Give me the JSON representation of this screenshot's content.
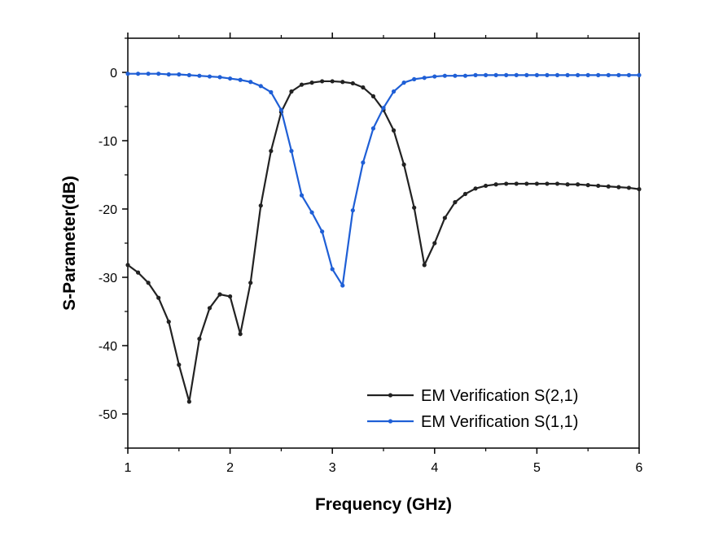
{
  "chart_data": {
    "type": "line",
    "title": "",
    "xlabel": "Frequency (GHz)",
    "ylabel": "S-Parameter(dB)",
    "xlim": [
      1,
      6
    ],
    "ylim": [
      -55,
      5
    ],
    "xticks": [
      1,
      2,
      3,
      4,
      5,
      6
    ],
    "yticks": [
      0,
      -10,
      -20,
      -30,
      -40,
      -50
    ],
    "x_tick_labels": [
      "1",
      "2",
      "3",
      "4",
      "5",
      "6"
    ],
    "y_tick_labels": [
      "0",
      "-10",
      "-20",
      "-30",
      "-40",
      "-50"
    ],
    "grid": false,
    "legend_position": "bottom-right",
    "x": [
      1.0,
      1.1,
      1.2,
      1.3,
      1.4,
      1.5,
      1.6,
      1.7,
      1.8,
      1.9,
      2.0,
      2.1,
      2.2,
      2.3,
      2.4,
      2.5,
      2.6,
      2.7,
      2.8,
      2.9,
      3.0,
      3.1,
      3.2,
      3.3,
      3.4,
      3.5,
      3.6,
      3.7,
      3.8,
      3.9,
      4.0,
      4.1,
      4.2,
      4.3,
      4.4,
      4.5,
      4.6,
      4.7,
      4.8,
      4.9,
      5.0,
      5.1,
      5.2,
      5.3,
      5.4,
      5.5,
      5.6,
      5.7,
      5.8,
      5.9,
      6.0
    ],
    "series": [
      {
        "name": "EM Verification S(2,1)",
        "color": "#222222",
        "values": [
          -28.2,
          -29.3,
          -30.8,
          -33.0,
          -36.5,
          -42.8,
          -48.2,
          -39.0,
          -34.5,
          -32.5,
          -32.8,
          -38.3,
          -30.8,
          -19.5,
          -11.5,
          -5.8,
          -2.8,
          -1.8,
          -1.5,
          -1.3,
          -1.3,
          -1.4,
          -1.6,
          -2.2,
          -3.5,
          -5.5,
          -8.5,
          -13.5,
          -19.8,
          -28.2,
          -25.0,
          -21.3,
          -19.0,
          -17.8,
          -17.0,
          -16.6,
          -16.4,
          -16.3,
          -16.3,
          -16.3,
          -16.3,
          -16.3,
          -16.3,
          -16.4,
          -16.4,
          -16.5,
          -16.6,
          -16.7,
          -16.8,
          -16.9,
          -17.1
        ]
      },
      {
        "name": "EM Verification S(1,1)",
        "color": "#1F5FD6",
        "values": [
          -0.2,
          -0.2,
          -0.2,
          -0.2,
          -0.3,
          -0.3,
          -0.4,
          -0.5,
          -0.6,
          -0.7,
          -0.9,
          -1.1,
          -1.4,
          -2.0,
          -2.9,
          -5.5,
          -11.5,
          -18.0,
          -20.5,
          -23.3,
          -28.8,
          -31.2,
          -20.2,
          -13.2,
          -8.2,
          -5.2,
          -2.8,
          -1.5,
          -1.0,
          -0.8,
          -0.6,
          -0.5,
          -0.5,
          -0.5,
          -0.4,
          -0.4,
          -0.4,
          -0.4,
          -0.4,
          -0.4,
          -0.4,
          -0.4,
          -0.4,
          -0.4,
          -0.4,
          -0.4,
          -0.4,
          -0.4,
          -0.4,
          -0.4,
          -0.4
        ]
      }
    ]
  }
}
